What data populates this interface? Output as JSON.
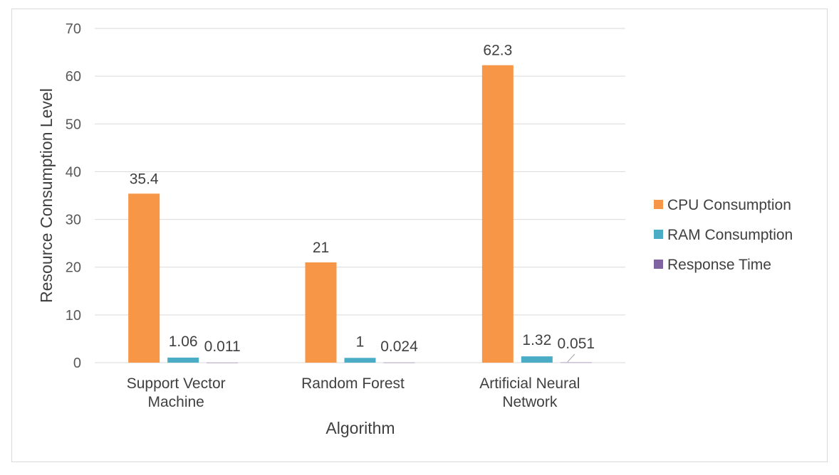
{
  "chart_data": {
    "type": "bar",
    "title": "",
    "xlabel": "Algorithm",
    "ylabel": "Resource Consumption Level",
    "ylim": [
      0,
      70
    ],
    "yticks": [
      0,
      10,
      20,
      30,
      40,
      50,
      60,
      70
    ],
    "grid": true,
    "legend_position": "right",
    "categories": [
      [
        "Support Vector",
        "Machine"
      ],
      [
        "Random Forest"
      ],
      [
        "Artificial Neural",
        "Network"
      ]
    ],
    "series": [
      {
        "name": "CPU Consumption",
        "color": "#F79646",
        "values": [
          35.4,
          21,
          62.3
        ],
        "labels": [
          "35.4",
          "21",
          "62.3"
        ]
      },
      {
        "name": "RAM Consumption",
        "color": "#4BACC6",
        "values": [
          1.06,
          1,
          1.32
        ],
        "labels": [
          "1.06",
          "1",
          "1.32"
        ]
      },
      {
        "name": "Response Time",
        "color": "#8064A2",
        "values": [
          0.011,
          0.024,
          0.051
        ],
        "labels": [
          "0.011",
          "0.024",
          "0.051"
        ]
      }
    ]
  }
}
